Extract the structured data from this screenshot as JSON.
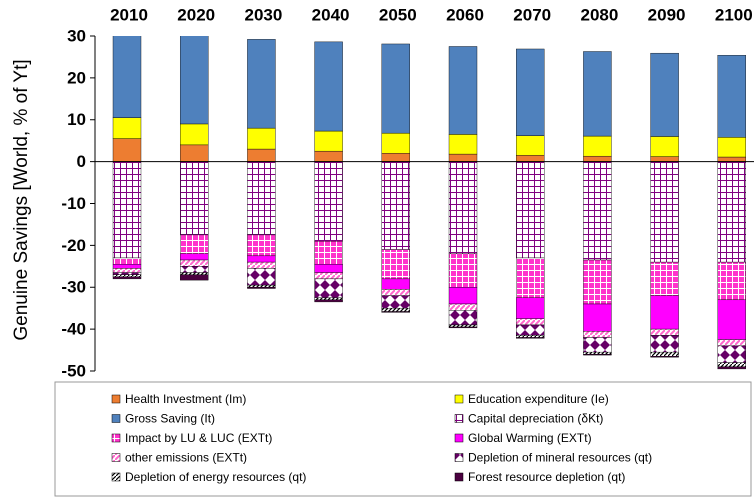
{
  "chart_data": {
    "type": "stacked_bar",
    "y_label": "Genuine Savings [World, % of Yt]",
    "categories": [
      "2010",
      "2020",
      "2030",
      "2040",
      "2050",
      "2060",
      "2070",
      "2080",
      "2090",
      "2100"
    ],
    "ylim": [
      -50,
      30
    ],
    "yticks": [
      -50,
      -40,
      -30,
      -20,
      -10,
      0,
      10,
      20,
      30
    ],
    "series": [
      {
        "name": "Health Investment (Im)",
        "color": "#ed7d31",
        "values": [
          5.5,
          4,
          3,
          2.5,
          2,
          1.8,
          1.5,
          1.3,
          1.2,
          1.1
        ]
      },
      {
        "name": "Education expenditure (Ie)",
        "color": "#ffff00",
        "values": [
          5,
          5,
          5,
          4.8,
          4.8,
          4.7,
          4.7,
          4.8,
          4.8,
          4.7
        ]
      },
      {
        "name": "Gross Saving (It)",
        "color": "#4f81bd",
        "values": [
          20.5,
          22,
          21.2,
          21.3,
          21.3,
          21,
          20.7,
          20.2,
          19.9,
          19.6
        ]
      },
      {
        "name": "Capital depreciation (δKt)",
        "color": "#800080",
        "values": [
          -23,
          -17.5,
          -17.5,
          -19,
          -21,
          -22,
          -23,
          -23.5,
          -24,
          -24
        ]
      },
      {
        "name": "Impact by LU & LUC (EXTt)",
        "color": "#ff33cc",
        "values": [
          -1.5,
          -4.5,
          -5,
          -5.5,
          -7,
          -8,
          -9.5,
          -10.5,
          -8,
          -9
        ]
      },
      {
        "name": "Global Warming (EXTt)",
        "color": "#ff00ff",
        "values": [
          -1,
          -1.5,
          -1.5,
          -2,
          -2.5,
          -4,
          -5,
          -6.5,
          -8,
          -9.5
        ]
      },
      {
        "name": "other emissions (EXTt)",
        "color": "#ff66cc",
        "values": [
          -1,
          -1.5,
          -1.5,
          -1.5,
          -1.5,
          -1.5,
          -1.5,
          -1.5,
          -1.5,
          -1.5
        ]
      },
      {
        "name": "Depletion of mineral resources (qt)",
        "color": "#660066",
        "values": [
          -0.5,
          -1.5,
          -4,
          -4.5,
          -3,
          -3.5,
          -2.5,
          -3.5,
          -4,
          -4
        ]
      },
      {
        "name": "Depletion of energy resources (qt)",
        "color": "#000000",
        "values": [
          -0.5,
          -0.5,
          -0.5,
          -0.5,
          -0.8,
          -0.5,
          -0.5,
          -0.5,
          -1,
          -1
        ]
      },
      {
        "name": "Forest resource depletion (qt)",
        "color": "#4b0040",
        "values": [
          -0.5,
          -1.3,
          -0.3,
          -0.5,
          -0.2,
          -0.2,
          -0.2,
          -0.2,
          -0.2,
          -0.5
        ]
      }
    ]
  }
}
